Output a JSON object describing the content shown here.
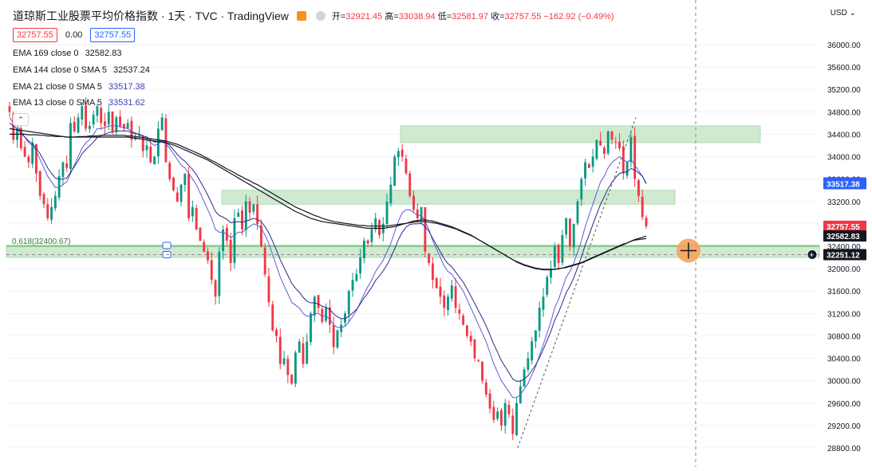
{
  "header": {
    "title": "道琼斯工业股票平均价格指数 · 1天 · TVC · TradingView",
    "open_label": "开",
    "open": "32921.45",
    "high_label": "高",
    "high": "33038.94",
    "low_label": "低",
    "low": "32581.97",
    "close_label": "收",
    "close": "32757.55",
    "change": "−162.92 (−0.49%)"
  },
  "pricebox": {
    "bid": "32757.55",
    "spread": "0.00",
    "ask": "32757.55"
  },
  "legend": [
    {
      "label": "EMA 169 close 0",
      "value": "32582.83",
      "color": "#131722"
    },
    {
      "label": "EMA 144 close 0 SMA 5",
      "value": "32537.24",
      "color": "#131722"
    },
    {
      "label": "EMA 21 close 0 SMA 5",
      "value": "33517.38",
      "color": "#3f3fb5"
    },
    {
      "label": "EMA 13 close 0 SMA 5",
      "value": "33531.62",
      "color": "#3f3fb5"
    }
  ],
  "currency": "USD",
  "chart_data": {
    "type": "candlestick",
    "yaxis": {
      "ticks": [
        36000,
        35600,
        35200,
        34800,
        34400,
        34000,
        33600,
        33200,
        32800,
        32400,
        32000,
        31600,
        31200,
        30800,
        30400,
        30000,
        29600,
        29200,
        28800
      ],
      "tick_labels": [
        "36000.00",
        "35600.00",
        "35200.00",
        "34800.00",
        "34400.00",
        "34000.00",
        "33600.00",
        "33200.00",
        "32800.00",
        "32400.00",
        "32000.00",
        "31600.00",
        "31200.00",
        "30800.00",
        "30400.00",
        "30000.00",
        "29600.00",
        "29200.00",
        "28800.00"
      ],
      "range": [
        28650,
        36200
      ]
    },
    "fib_label": "0.618(32400.67)",
    "fib_level": 32400.67,
    "zones": [
      {
        "from": 34250,
        "to": 34550
      },
      {
        "from": 33150,
        "to": 33400
      },
      {
        "from": 32200,
        "to": 32420
      }
    ],
    "price_tags": [
      {
        "value": 33531.62,
        "label": "33531.62",
        "color": "#7b3ff2"
      },
      {
        "value": 33517.38,
        "label": "33517.38",
        "color": "#2962ff"
      },
      {
        "value": 32757.55,
        "label": "32757.55",
        "color": "#f23645"
      },
      {
        "value": 32582.83,
        "label": "32582.83",
        "color": "#131722"
      },
      {
        "value": 32251.12,
        "label": "32251.12",
        "color": "#131722"
      }
    ],
    "closes": [
      34800,
      34300,
      34500,
      34150,
      34000,
      33900,
      34250,
      33700,
      33300,
      33150,
      32900,
      33100,
      33300,
      33650,
      33900,
      33800,
      34600,
      34450,
      34700,
      34900,
      34500,
      34550,
      34750,
      34900,
      34600,
      34550,
      34800,
      34450,
      34700,
      34550,
      34500,
      34600,
      34300,
      34350,
      34400,
      34100,
      34200,
      33900,
      34000,
      34500,
      34700,
      33900,
      33600,
      33400,
      33200,
      33500,
      33700,
      32900,
      33100,
      32700,
      32500,
      32300,
      32150,
      31800,
      31500,
      32300,
      32700,
      32500,
      32100,
      32900,
      33000,
      32700,
      33200,
      33000,
      33150,
      32800,
      32400,
      31900,
      31400,
      30900,
      30800,
      30300,
      30400,
      30100,
      29950,
      30500,
      30700,
      30300,
      30700,
      31200,
      31500,
      31300,
      31050,
      31300,
      31000,
      30600,
      30900,
      31000,
      31200,
      31600,
      31800,
      31900,
      32200,
      32500,
      32450,
      32700,
      32900,
      32600,
      32800,
      33200,
      33500,
      34000,
      34100,
      34000,
      33700,
      33300,
      33050,
      32900,
      33100,
      32300,
      32100,
      31800,
      31650,
      31500,
      31300,
      31500,
      31700,
      31300,
      31200,
      31000,
      30800,
      30700,
      30400,
      30350,
      30000,
      29750,
      29500,
      29300,
      29450,
      29200,
      29600,
      29400,
      29050,
      29600,
      29900,
      30200,
      30400,
      30700,
      30900,
      31300,
      31500,
      31850,
      32000,
      32400,
      32100,
      32600,
      32900,
      32400,
      32800,
      33200,
      33600,
      33900,
      33800,
      34000,
      34300,
      34200,
      34050,
      34450,
      34300,
      34250,
      34150,
      33700,
      33900,
      34350,
      33600,
      33300,
      32920,
      32757.55
    ],
    "ema13": [
      34700,
      34600,
      34550,
      34450,
      34350,
      34250,
      34200,
      34100,
      33950,
      33800,
      33650,
      33550,
      33450,
      33450,
      33500,
      33550,
      33700,
      33850,
      34000,
      34150,
      34250,
      34300,
      34400,
      34500,
      34500,
      34520,
      34550,
      34550,
      34550,
      34540,
      34520,
      34500,
      34450,
      34420,
      34400,
      34350,
      34320,
      34250,
      34200,
      34230,
      34280,
      34220,
      34150,
      34050,
      33950,
      33850,
      33800,
      33700,
      33600,
      33500,
      33350,
      33200,
      33050,
      32900,
      32700,
      32650,
      32650,
      32620,
      32550,
      32600,
      32650,
      32650,
      32700,
      32750,
      32800,
      32780,
      32720,
      32600,
      32450,
      32250,
      32050,
      31850,
      31700,
      31550,
      31400,
      31350,
      31300,
      31200,
      31150,
      31150,
      31200,
      31200,
      31150,
      31150,
      31100,
      31000,
      30950,
      30950,
      30970,
      31050,
      31150,
      31250,
      31400,
      31550,
      31680,
      31800,
      31950,
      32050,
      32150,
      32300,
      32450,
      32650,
      32850,
      33000,
      33050,
      33050,
      33000,
      32950,
      32950,
      32850,
      32700,
      32500,
      32350,
      32200,
      32050,
      31950,
      31900,
      31800,
      31700,
      31600,
      31450,
      31300,
      31150,
      31000,
      30850,
      30700,
      30500,
      30300,
      30150,
      30000,
      29900,
      29800,
      29700,
      29700,
      29750,
      29850,
      29950,
      30100,
      30250,
      30450,
      30650,
      30850,
      31050,
      31300,
      31450,
      31650,
      31850,
      31950,
      32100,
      32300,
      32500,
      32750,
      32950,
      33150,
      33350,
      33550,
      33650,
      33800,
      33900,
      33950,
      34000,
      33950,
      33900,
      33950,
      33850,
      33750,
      33650,
      33531.62
    ],
    "ema21": [
      34600,
      34550,
      34500,
      34420,
      34350,
      34280,
      34230,
      34150,
      34050,
      33930,
      33800,
      33700,
      33620,
      33600,
      33600,
      33620,
      33720,
      33820,
      33930,
      34050,
      34130,
      34190,
      34260,
      34340,
      34370,
      34400,
      34430,
      34440,
      34460,
      34460,
      34460,
      34460,
      34430,
      34410,
      34400,
      34370,
      34350,
      34300,
      34260,
      34270,
      34290,
      34250,
      34200,
      34120,
      34040,
      33970,
      33920,
      33840,
      33770,
      33680,
      33560,
      33440,
      33310,
      33170,
      33020,
      32950,
      32920,
      32880,
      32820,
      32830,
      32840,
      32830,
      32850,
      32870,
      32900,
      32880,
      32840,
      32750,
      32640,
      32490,
      32330,
      32160,
      32020,
      31880,
      31740,
      31650,
      31580,
      31490,
      31420,
      31390,
      31390,
      31370,
      31330,
      31310,
      31270,
      31190,
      31140,
      31110,
      31110,
      31150,
      31210,
      31270,
      31370,
      31480,
      31570,
      31670,
      31790,
      31870,
      31960,
      32070,
      32200,
      32350,
      32520,
      32650,
      32740,
      32790,
      32800,
      32800,
      32810,
      32750,
      32670,
      32540,
      32420,
      32300,
      32180,
      32090,
      32030,
      31940,
      31850,
      31760,
      31640,
      31510,
      31380,
      31250,
      31120,
      30980,
      30820,
      30650,
      30510,
      30360,
      30250,
      30140,
      30030,
      29990,
      29990,
      30030,
      30090,
      30180,
      30280,
      30410,
      30560,
      30720,
      30880,
      31080,
      31220,
      31390,
      31570,
      31690,
      31840,
      32020,
      32210,
      32420,
      32600,
      32790,
      32970,
      33150,
      33280,
      33430,
      33540,
      33630,
      33700,
      33720,
      33730,
      33790,
      33760,
      33710,
      33650,
      33517.38
    ],
    "ema144": [
      34500,
      34490,
      34480,
      34470,
      34460,
      34450,
      34440,
      34430,
      34420,
      34410,
      34400,
      34390,
      34380,
      34370,
      34360,
      34350,
      34350,
      34350,
      34350,
      34350,
      34350,
      34350,
      34350,
      34350,
      34350,
      34350,
      34350,
      34350,
      34350,
      34350,
      34350,
      34350,
      34340,
      34330,
      34320,
      34310,
      34300,
      34290,
      34280,
      34270,
      34260,
      34250,
      34230,
      34210,
      34180,
      34150,
      34120,
      34090,
      34060,
      34030,
      34000,
      33970,
      33940,
      33900,
      33860,
      33820,
      33780,
      33740,
      33700,
      33660,
      33620,
      33580,
      33540,
      33500,
      33460,
      33420,
      33380,
      33340,
      33300,
      33260,
      33220,
      33180,
      33140,
      33100,
      33060,
      33020,
      32990,
      32960,
      32930,
      32900,
      32880,
      32860,
      32840,
      32830,
      32820,
      32810,
      32800,
      32790,
      32780,
      32770,
      32760,
      32750,
      32740,
      32730,
      32720,
      32720,
      32720,
      32720,
      32720,
      32730,
      32740,
      32750,
      32770,
      32790,
      32810,
      32830,
      32850,
      32860,
      32870,
      32870,
      32860,
      32850,
      32830,
      32810,
      32790,
      32770,
      32750,
      32720,
      32690,
      32660,
      32630,
      32600,
      32560,
      32520,
      32480,
      32440,
      32400,
      32360,
      32320,
      32280,
      32240,
      32200,
      32160,
      32120,
      32090,
      32060,
      32040,
      32020,
      32000,
      31990,
      31980,
      31980,
      31980,
      31990,
      32000,
      32010,
      32030,
      32050,
      32070,
      32090,
      32110,
      32140,
      32170,
      32200,
      32230,
      32260,
      32290,
      32320,
      32350,
      32380,
      32410,
      32440,
      32460,
      32490,
      32510,
      32520,
      32530,
      32537.24
    ],
    "ema169": [
      34400,
      34400,
      34400,
      34400,
      34400,
      34390,
      34390,
      34390,
      34380,
      34380,
      34370,
      34370,
      34360,
      34360,
      34360,
      34350,
      34350,
      34350,
      34360,
      34360,
      34360,
      34370,
      34370,
      34370,
      34380,
      34380,
      34380,
      34380,
      34380,
      34380,
      34380,
      34370,
      34370,
      34360,
      34350,
      34340,
      34330,
      34320,
      34310,
      34300,
      34290,
      34280,
      34260,
      34240,
      34220,
      34190,
      34160,
      34130,
      34100,
      34070,
      34040,
      34000,
      33970,
      33930,
      33900,
      33860,
      33820,
      33780,
      33750,
      33710,
      33670,
      33640,
      33600,
      33570,
      33530,
      33500,
      33460,
      33420,
      33380,
      33340,
      33300,
      33260,
      33220,
      33180,
      33140,
      33100,
      33070,
      33040,
      33010,
      32980,
      32950,
      32930,
      32900,
      32880,
      32860,
      32840,
      32830,
      32820,
      32810,
      32800,
      32790,
      32780,
      32770,
      32770,
      32760,
      32760,
      32760,
      32760,
      32760,
      32760,
      32770,
      32780,
      32790,
      32800,
      32810,
      32820,
      32830,
      32840,
      32840,
      32840,
      32830,
      32820,
      32810,
      32790,
      32770,
      32750,
      32730,
      32710,
      32680,
      32650,
      32620,
      32590,
      32560,
      32520,
      32480,
      32440,
      32400,
      32360,
      32320,
      32280,
      32240,
      32200,
      32160,
      32130,
      32100,
      32070,
      32050,
      32030,
      32010,
      32000,
      31990,
      31990,
      31990,
      31990,
      32000,
      32010,
      32020,
      32040,
      32060,
      32080,
      32100,
      32130,
      32160,
      32190,
      32220,
      32250,
      32280,
      32310,
      32340,
      32370,
      32400,
      32430,
      32460,
      32490,
      32520,
      32540,
      32560,
      32582.83
    ]
  }
}
